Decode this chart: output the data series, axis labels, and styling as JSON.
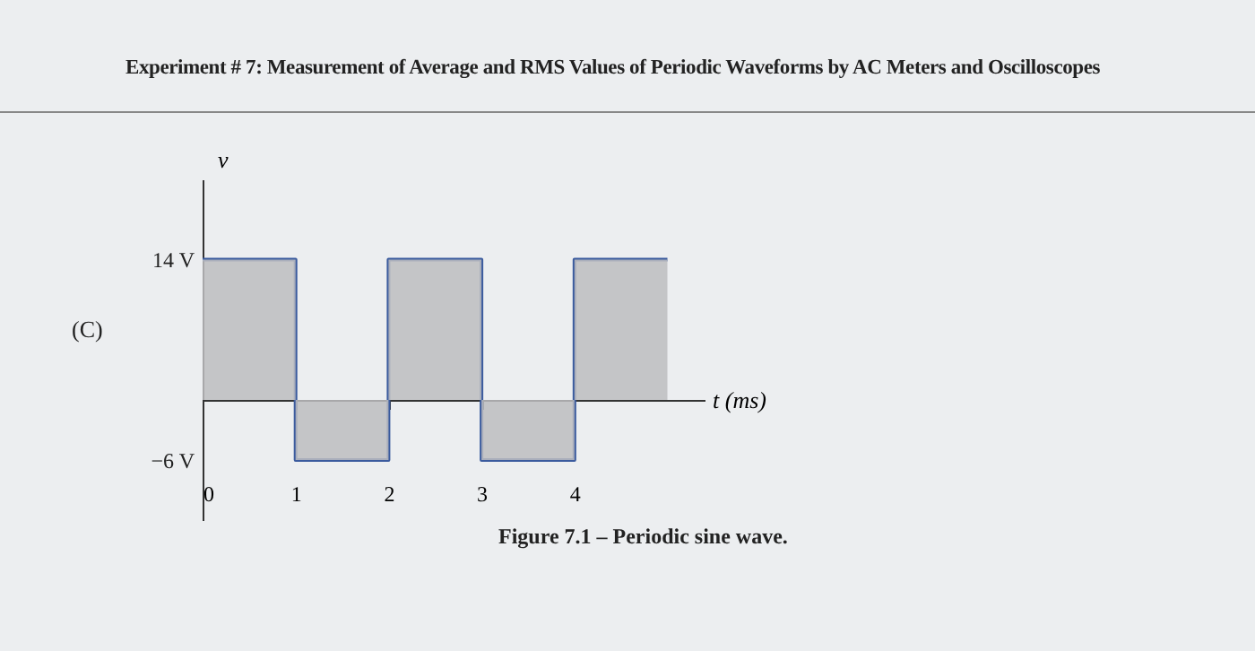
{
  "chart_data": {
    "type": "step",
    "title": "Experiment # 7: Measurement of Average and RMS Values of Periodic Waveforms by AC Meters and Oscilloscopes",
    "xlabel": "t (ms)",
    "ylabel": "v",
    "x": [
      0,
      1,
      2,
      3,
      4,
      5
    ],
    "series": [
      {
        "color": "#3b5b9e",
        "values": [
          14,
          -6,
          14,
          -6,
          14,
          14
        ]
      }
    ],
    "xlim": [
      0,
      5.4
    ],
    "xticks": [
      0,
      1,
      2,
      3,
      4
    ],
    "ylim": [
      -12,
      22
    ],
    "yticks": [
      {
        "value": 14,
        "label": "14 V"
      },
      {
        "value": -6,
        "label": "−6 V"
      }
    ],
    "grid": false,
    "annotations": [
      "(C)",
      "Figure 7.1 – Periodic sine wave."
    ]
  }
}
